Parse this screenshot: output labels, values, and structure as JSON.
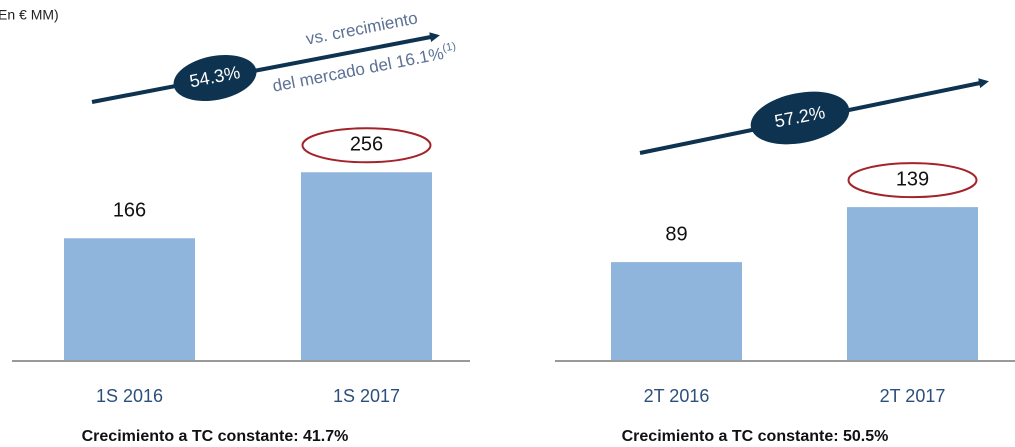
{
  "unit_label": "En € MM)",
  "chart_data": [
    {
      "type": "bar",
      "categories": [
        "1S 2016",
        "1S 2017"
      ],
      "values": [
        166,
        256
      ],
      "color": "#8fb5dd",
      "ylim": [
        0,
        300
      ],
      "growth": "54.3%",
      "note": [
        "vs. crecimiento",
        "del mercado del 16.1%"
      ],
      "note_ref": "(1)",
      "footnote": "Crecimiento a TC constante: 41.7%"
    },
    {
      "type": "bar",
      "categories": [
        "2T 2016",
        "2T 2017"
      ],
      "values": [
        89,
        139
      ],
      "color": "#8fb5dd",
      "ylim": [
        0,
        200
      ],
      "growth": "57.2%",
      "footnote": "Crecimiento a TC constante: 50.5%"
    }
  ]
}
